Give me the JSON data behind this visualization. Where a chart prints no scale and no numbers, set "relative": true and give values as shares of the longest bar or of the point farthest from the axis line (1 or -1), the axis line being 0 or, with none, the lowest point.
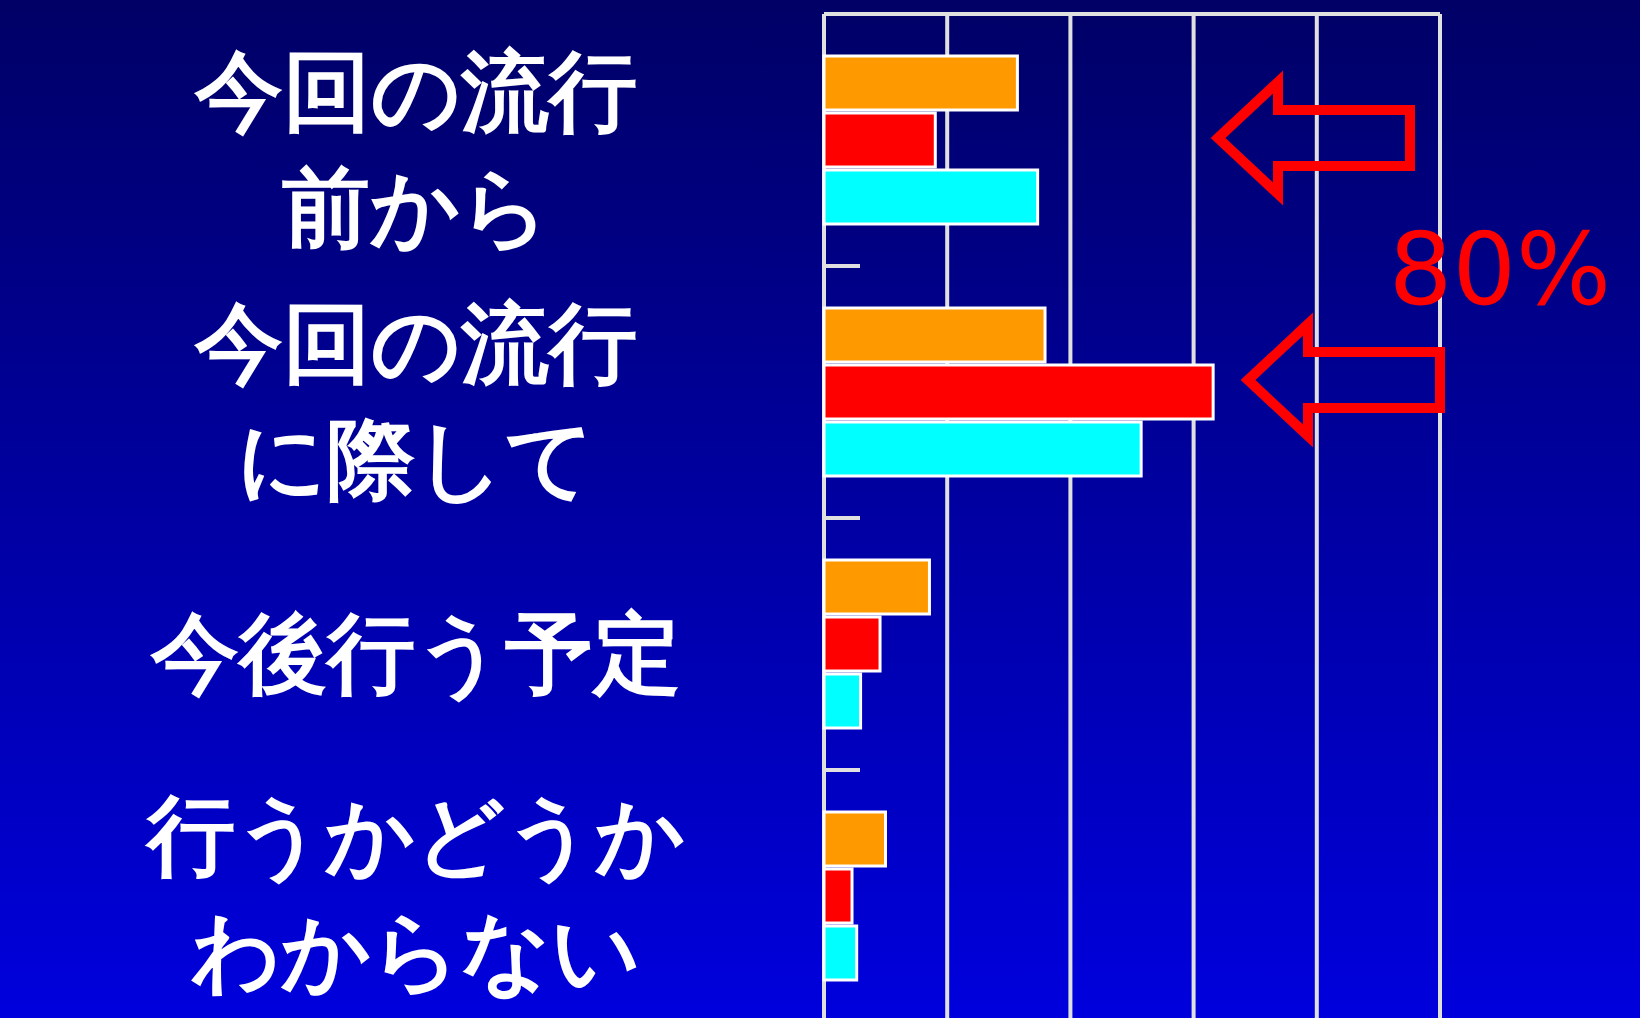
{
  "chart_data": {
    "type": "bar",
    "orientation": "horizontal",
    "relative": true,
    "grid": true,
    "legend": false,
    "categories": [
      "今回の流行前から",
      "今回の流行に際して",
      "今後行う予定",
      "行うかどうかわからない"
    ],
    "series": [
      {
        "color": "#ff9900",
        "values": [
          0.497,
          0.568,
          0.271,
          0.158
        ]
      },
      {
        "color": "#ff0000",
        "values": [
          0.286,
          1,
          0.144,
          0.072
        ]
      },
      {
        "color": "#00ffff",
        "values": [
          0.549,
          0.815,
          0.094,
          0.084
        ]
      }
    ],
    "annotations": [
      "80%"
    ]
  }
}
